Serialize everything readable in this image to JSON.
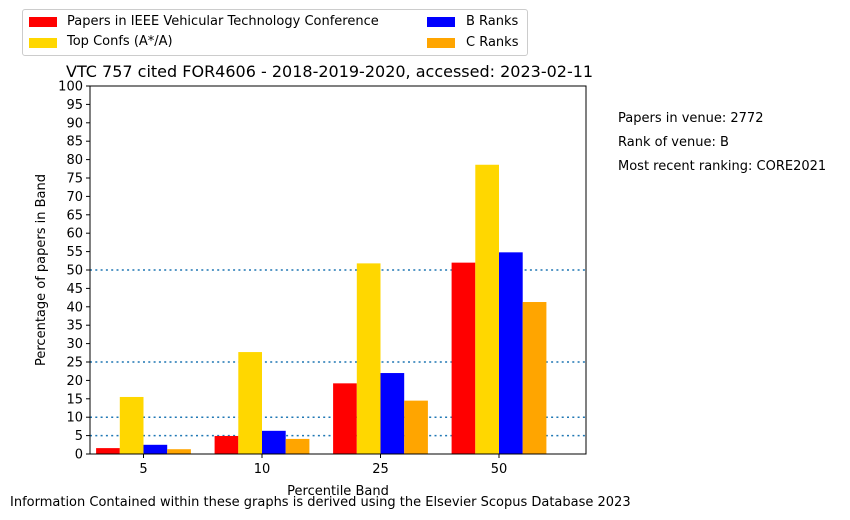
{
  "chart_data": {
    "type": "bar",
    "title": "VTC 757 cited FOR4606 - 2018-2019-2020, accessed: 2023-02-11",
    "xlabel": "Percentile Band",
    "ylabel": "Percentage of papers in Band",
    "ylim": [
      0,
      100
    ],
    "yticks": [
      "0",
      "5",
      "10",
      "15",
      "20",
      "25",
      "30",
      "35",
      "40",
      "45",
      "50",
      "55",
      "60",
      "65",
      "70",
      "75",
      "80",
      "85",
      "90",
      "95",
      "100"
    ],
    "categories": [
      "5",
      "10",
      "25",
      "50"
    ],
    "series": [
      {
        "name": "Papers in IEEE Vehicular Technology Conference",
        "color": "#ff0000",
        "values": [
          1.6,
          4.9,
          19.2,
          52.0
        ]
      },
      {
        "name": "Top Confs (A*/A)",
        "color": "#ffd700",
        "values": [
          15.5,
          27.7,
          51.8,
          78.6
        ]
      },
      {
        "name": "B Ranks",
        "color": "#0000ff",
        "values": [
          2.5,
          6.3,
          22.0,
          54.8
        ]
      },
      {
        "name": "C Ranks",
        "color": "#ffa500",
        "values": [
          1.3,
          4.1,
          14.5,
          41.3
        ]
      }
    ],
    "reference_lines": [
      5,
      10,
      25,
      50
    ],
    "reference_line_color": "#1f77b4",
    "legend_placement": "top-left, outside plot",
    "grid": false
  },
  "info": {
    "papers": "Papers in venue: 2772",
    "rank": "Rank of venue: B",
    "recent": "Most recent ranking: CORE2021"
  },
  "footer": "Information Contained within these graphs is derived using the Elsevier Scopus Database 2023"
}
